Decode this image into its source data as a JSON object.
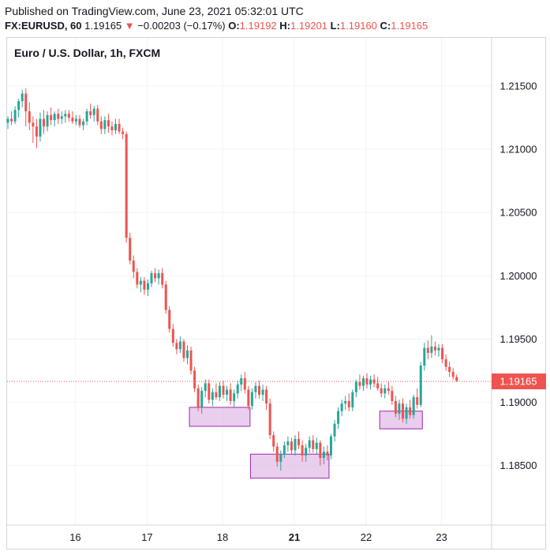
{
  "published": "Published on TradingView.com, June 23, 2021 05:32:01 UTC",
  "quote": {
    "symbol": "FX:EURUSD, 60",
    "last": "1.19165",
    "arrow": "▼",
    "change": "−0.00203 (−0.17%)",
    "open_label": "O:",
    "open": "1.19192",
    "high_label": "H:",
    "high": "1.19201",
    "low_label": "L:",
    "low": "1.19160",
    "close_label": "C:",
    "close": "1.19165"
  },
  "chart_data": {
    "type": "candlestick",
    "title": "Euro / U.S. Dollar, 1h, FXCM",
    "x_ticks": [
      "16",
      "17",
      "18",
      "21",
      "22",
      "23"
    ],
    "x_ticks_bold": [
      "21"
    ],
    "y_ticks": [
      "1.21500",
      "1.21000",
      "1.20500",
      "1.20000",
      "1.19500",
      "1.19000",
      "1.18500"
    ],
    "ylim": [
      1.1803,
      1.2188
    ],
    "last_price_label": "1.19165",
    "last_price": 1.19165,
    "colors": {
      "up": "#26a69a",
      "down": "#ef5350",
      "grid": "#f0f3fa",
      "highlight_fill": "#e1bee7",
      "highlight_stroke": "#9c27b0"
    },
    "highlight_zones": [
      {
        "from": "18",
        "to": "18",
        "top": 1.1896,
        "bottom": 1.1881
      },
      {
        "from": "21",
        "to": "21",
        "top": 1.1859,
        "bottom": 1.184
      },
      {
        "from": "22",
        "to": "22",
        "top": 1.1893,
        "bottom": 1.1879
      }
    ],
    "candles": [
      [
        1.2121,
        1.2126,
        1.2116,
        1.2124
      ],
      [
        1.2124,
        1.213,
        1.2119,
        1.2122
      ],
      [
        1.2122,
        1.2134,
        1.212,
        1.2131
      ],
      [
        1.2131,
        1.214,
        1.2125,
        1.2138
      ],
      [
        1.2138,
        1.2147,
        1.2133,
        1.2144
      ],
      [
        1.2144,
        1.2148,
        1.2118,
        1.213
      ],
      [
        1.213,
        1.2137,
        1.2115,
        1.2121
      ],
      [
        1.2121,
        1.2126,
        1.2105,
        1.2118
      ],
      [
        1.2118,
        1.2124,
        1.2101,
        1.211
      ],
      [
        1.211,
        1.2129,
        1.2106,
        1.2124
      ],
      [
        1.2124,
        1.2131,
        1.2112,
        1.2118
      ],
      [
        1.2118,
        1.213,
        1.2114,
        1.2127
      ],
      [
        1.2127,
        1.2133,
        1.2119,
        1.2123
      ],
      [
        1.2123,
        1.213,
        1.2118,
        1.2128
      ],
      [
        1.2128,
        1.2132,
        1.212,
        1.2124
      ],
      [
        1.2124,
        1.213,
        1.212,
        1.2126
      ],
      [
        1.2126,
        1.2131,
        1.2121,
        1.2128
      ],
      [
        1.2128,
        1.2131,
        1.2122,
        1.2125
      ],
      [
        1.2125,
        1.213,
        1.212,
        1.2122
      ],
      [
        1.2122,
        1.2127,
        1.2119,
        1.2124
      ],
      [
        1.2124,
        1.2127,
        1.2117,
        1.2119
      ],
      [
        1.2119,
        1.2124,
        1.2115,
        1.2122
      ],
      [
        1.2122,
        1.2132,
        1.2119,
        1.213
      ],
      [
        1.213,
        1.2136,
        1.2124,
        1.2127
      ],
      [
        1.2127,
        1.2134,
        1.2122,
        1.2132
      ],
      [
        1.2132,
        1.2135,
        1.2119,
        1.2122
      ],
      [
        1.2122,
        1.2126,
        1.2112,
        1.2116
      ],
      [
        1.2116,
        1.2126,
        1.2112,
        1.2123
      ],
      [
        1.2123,
        1.2128,
        1.2113,
        1.2118
      ],
      [
        1.2118,
        1.2122,
        1.2111,
        1.2115
      ],
      [
        1.2115,
        1.2124,
        1.2112,
        1.212
      ],
      [
        1.212,
        1.2124,
        1.2112,
        1.2114
      ],
      [
        1.2114,
        1.2117,
        1.2108,
        1.2112
      ],
      [
        1.2112,
        1.2114,
        1.2026,
        1.203
      ],
      [
        1.203,
        1.2034,
        1.2009,
        1.2012
      ],
      [
        1.2012,
        1.2016,
        1.1998,
        1.2003
      ],
      [
        1.2003,
        1.2006,
        1.199,
        1.1993
      ],
      [
        1.1993,
        1.1999,
        1.1987,
        1.1996
      ],
      [
        1.1996,
        1.1999,
        1.1985,
        1.1989
      ],
      [
        1.1989,
        1.1997,
        1.1984,
        1.1994
      ],
      [
        1.1994,
        1.2004,
        1.1991,
        1.2002
      ],
      [
        1.2002,
        1.2006,
        1.1995,
        1.1998
      ],
      [
        1.1998,
        1.2005,
        1.1993,
        1.2002
      ],
      [
        1.2002,
        1.2006,
        1.199,
        1.1993
      ],
      [
        1.1993,
        1.1996,
        1.197,
        1.1973
      ],
      [
        1.1973,
        1.1976,
        1.1955,
        1.1958
      ],
      [
        1.1958,
        1.1962,
        1.1944,
        1.1947
      ],
      [
        1.1947,
        1.195,
        1.1938,
        1.1942
      ],
      [
        1.1942,
        1.1952,
        1.1939,
        1.1948
      ],
      [
        1.1948,
        1.195,
        1.1932,
        1.1935
      ],
      [
        1.1935,
        1.1945,
        1.193,
        1.1941
      ],
      [
        1.1941,
        1.1944,
        1.1922,
        1.1925
      ],
      [
        1.1925,
        1.1928,
        1.1908,
        1.1911
      ],
      [
        1.1911,
        1.1914,
        1.1893,
        1.1896
      ],
      [
        1.1896,
        1.1912,
        1.1891,
        1.1909
      ],
      [
        1.1909,
        1.1918,
        1.1904,
        1.1915
      ],
      [
        1.1915,
        1.1918,
        1.1899,
        1.1902
      ],
      [
        1.1902,
        1.1911,
        1.1897,
        1.1908
      ],
      [
        1.1908,
        1.1915,
        1.1902,
        1.1904
      ],
      [
        1.1904,
        1.1916,
        1.1901,
        1.1913
      ],
      [
        1.1913,
        1.1917,
        1.1903,
        1.1906
      ],
      [
        1.1906,
        1.1913,
        1.1901,
        1.191
      ],
      [
        1.191,
        1.1915,
        1.1898,
        1.1901
      ],
      [
        1.1901,
        1.191,
        1.1896,
        1.1907
      ],
      [
        1.1907,
        1.1917,
        1.1903,
        1.1914
      ],
      [
        1.1914,
        1.1922,
        1.1909,
        1.1919
      ],
      [
        1.1919,
        1.1924,
        1.1907,
        1.191
      ],
      [
        1.191,
        1.1913,
        1.1894,
        1.1897
      ],
      [
        1.1897,
        1.1911,
        1.1894,
        1.1908
      ],
      [
        1.1908,
        1.1916,
        1.1903,
        1.1913
      ],
      [
        1.1913,
        1.1917,
        1.1903,
        1.1906
      ],
      [
        1.1906,
        1.1914,
        1.1901,
        1.191
      ],
      [
        1.191,
        1.1913,
        1.1894,
        1.1899
      ],
      [
        1.1899,
        1.1903,
        1.1871,
        1.1874
      ],
      [
        1.1874,
        1.1877,
        1.1861,
        1.1865
      ],
      [
        1.1865,
        1.1868,
        1.1849,
        1.1853
      ],
      [
        1.1853,
        1.1862,
        1.1846,
        1.1859
      ],
      [
        1.1859,
        1.1869,
        1.1856,
        1.1866
      ],
      [
        1.1866,
        1.1873,
        1.1861,
        1.1869
      ],
      [
        1.1869,
        1.1872,
        1.1859,
        1.1862
      ],
      [
        1.1862,
        1.1874,
        1.1858,
        1.1871
      ],
      [
        1.1871,
        1.1877,
        1.1863,
        1.1866
      ],
      [
        1.1866,
        1.187,
        1.1853,
        1.1858
      ],
      [
        1.1858,
        1.1867,
        1.1853,
        1.1864
      ],
      [
        1.1864,
        1.1873,
        1.186,
        1.187
      ],
      [
        1.187,
        1.1874,
        1.186,
        1.1863
      ],
      [
        1.1863,
        1.1872,
        1.1859,
        1.1868
      ],
      [
        1.1868,
        1.187,
        1.185,
        1.1856
      ],
      [
        1.1856,
        1.1865,
        1.1851,
        1.1861
      ],
      [
        1.1861,
        1.1866,
        1.1854,
        1.1858
      ],
      [
        1.1858,
        1.1875,
        1.1855,
        1.1873
      ],
      [
        1.1873,
        1.1886,
        1.1869,
        1.1883
      ],
      [
        1.1883,
        1.1896,
        1.1879,
        1.1893
      ],
      [
        1.1893,
        1.1902,
        1.1889,
        1.1899
      ],
      [
        1.1899,
        1.1905,
        1.1894,
        1.1901
      ],
      [
        1.1901,
        1.1907,
        1.1893,
        1.1896
      ],
      [
        1.1896,
        1.191,
        1.1893,
        1.1908
      ],
      [
        1.1908,
        1.1918,
        1.1904,
        1.1916
      ],
      [
        1.1916,
        1.1922,
        1.191,
        1.1913
      ],
      [
        1.1913,
        1.1921,
        1.1909,
        1.1919
      ],
      [
        1.1919,
        1.1923,
        1.1911,
        1.1914
      ],
      [
        1.1914,
        1.1921,
        1.191,
        1.1918
      ],
      [
        1.1918,
        1.1922,
        1.1912,
        1.1915
      ],
      [
        1.1915,
        1.192,
        1.1909,
        1.1911
      ],
      [
        1.1911,
        1.1915,
        1.1904,
        1.1907
      ],
      [
        1.1907,
        1.1914,
        1.1903,
        1.1911
      ],
      [
        1.1911,
        1.1916,
        1.1906,
        1.1909
      ],
      [
        1.1909,
        1.1913,
        1.1898,
        1.1901
      ],
      [
        1.1901,
        1.1905,
        1.1888,
        1.1891
      ],
      [
        1.1891,
        1.1902,
        1.1886,
        1.1899
      ],
      [
        1.1899,
        1.1903,
        1.1884,
        1.1887
      ],
      [
        1.1887,
        1.1899,
        1.1883,
        1.1896
      ],
      [
        1.1896,
        1.1902,
        1.1887,
        1.189
      ],
      [
        1.189,
        1.1906,
        1.1887,
        1.1904
      ],
      [
        1.1904,
        1.1911,
        1.1895,
        1.1898
      ],
      [
        1.1898,
        1.1932,
        1.1896,
        1.1929
      ],
      [
        1.1929,
        1.1947,
        1.1925,
        1.1943
      ],
      [
        1.1943,
        1.1949,
        1.1934,
        1.1939
      ],
      [
        1.1939,
        1.1953,
        1.1935,
        1.1944
      ],
      [
        1.1944,
        1.1948,
        1.1937,
        1.1941
      ],
      [
        1.1941,
        1.1946,
        1.1936,
        1.1943
      ],
      [
        1.1943,
        1.1946,
        1.1931,
        1.1934
      ],
      [
        1.1934,
        1.1938,
        1.1925,
        1.1928
      ],
      [
        1.1928,
        1.1932,
        1.192,
        1.1924
      ],
      [
        1.1924,
        1.1927,
        1.1918,
        1.192
      ],
      [
        1.192,
        1.1922,
        1.1916,
        1.1917
      ]
    ]
  }
}
